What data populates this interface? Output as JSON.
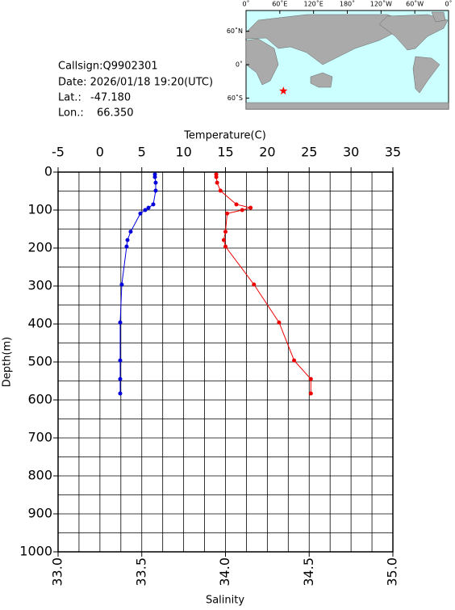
{
  "info": {
    "callsign": "Callsign:Q9902301",
    "date": "Date:  2026/01/18 19:20(UTC)",
    "lat_label": "Lat.:",
    "lat": {
      "value": -47.18,
      "label": "-47.180"
    },
    "lon_label": "Lon.:",
    "lon": {
      "value": 66.35,
      "label": "66.350"
    }
  },
  "map": {
    "lonticks": [
      {
        "value": 0,
        "label": "0˚"
      },
      {
        "value": 60,
        "label": "60˚E"
      },
      {
        "value": 120,
        "label": "120˚E"
      },
      {
        "value": 180,
        "label": "180˚"
      },
      {
        "value": 240,
        "label": "120˚W"
      },
      {
        "value": 300,
        "label": "60˚W"
      },
      {
        "value": 360,
        "label": "0˚"
      }
    ],
    "latticks": [
      {
        "value": 60,
        "label": "60˚N"
      },
      {
        "value": 0,
        "label": "0˚"
      },
      {
        "value": -60,
        "label": "60˚S"
      }
    ]
  },
  "chart_data": {
    "type": "line",
    "xlabel": "Temperature(C)",
    "x2label": "Salinity",
    "ylabel": "Depth(m)",
    "xlim": [
      -5,
      35
    ],
    "xticks": [
      -5,
      0,
      5,
      10,
      15,
      20,
      25,
      30,
      35
    ],
    "x2lim": [
      33,
      35
    ],
    "x2ticks": [
      {
        "value": 33,
        "label": "33.0"
      },
      {
        "value": 33.5,
        "label": "33.5"
      },
      {
        "value": 34,
        "label": "34.0"
      },
      {
        "value": 34.5,
        "label": "34.5"
      },
      {
        "value": 35,
        "label": "35.0"
      }
    ],
    "x2minor": [
      33.125,
      33.25,
      33.375,
      33.5,
      33.625,
      33.75,
      33.875,
      34,
      34.125,
      34.25,
      34.375,
      34.5,
      34.625,
      34.75,
      34.875
    ],
    "ylim": [
      0,
      1000
    ],
    "yticks": [
      0,
      100,
      200,
      300,
      400,
      500,
      600,
      700,
      800,
      900,
      1000
    ],
    "yminor": [
      50,
      100,
      150,
      200,
      250,
      300,
      350,
      400,
      450,
      500,
      550,
      600,
      650,
      700,
      750,
      800,
      850,
      900,
      950
    ],
    "grid": true,
    "depth": [
      6,
      13,
      28,
      49,
      85,
      94,
      100,
      109,
      157,
      179,
      196,
      296,
      396,
      496,
      545,
      583
    ],
    "series": [
      {
        "name": "Temperature",
        "color": "#0000dd",
        "axis": "x",
        "values": [
          6.57,
          6.57,
          6.66,
          6.66,
          6.37,
          5.8,
          5.41,
          4.83,
          3.67,
          3.29,
          3.19,
          2.61,
          2.42,
          2.42,
          2.42,
          2.42
        ]
      },
      {
        "name": "Salinity",
        "color": "#ee0000",
        "axis": "x2",
        "values": [
          33.945,
          33.945,
          33.95,
          33.97,
          34.065,
          34.15,
          34.1,
          34.01,
          34.0,
          33.99,
          34.0,
          34.17,
          34.32,
          34.41,
          34.51,
          34.51
        ]
      }
    ]
  }
}
